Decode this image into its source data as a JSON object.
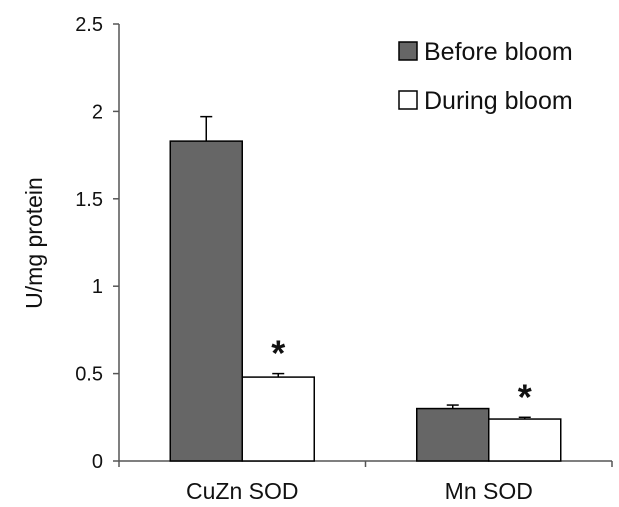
{
  "chart_data": {
    "type": "bar",
    "ylabel": "U/mg protein",
    "xlabel": "",
    "ylim": [
      0,
      2.5
    ],
    "yticks": [
      {
        "value": 0,
        "label": "0"
      },
      {
        "value": 0.5,
        "label": "0.5"
      },
      {
        "value": 1,
        "label": "1"
      },
      {
        "value": 1.5,
        "label": "1.5"
      },
      {
        "value": 2,
        "label": "2"
      },
      {
        "value": 2.5,
        "label": "2.5"
      }
    ],
    "categories": [
      "CuZn SOD",
      "Mn SOD"
    ],
    "series": [
      {
        "name": "Before bloom",
        "color": "#666666",
        "values": [
          1.83,
          0.3
        ],
        "errors": [
          0.14,
          0.02
        ]
      },
      {
        "name": "During bloom",
        "color": "#ffffff",
        "values": [
          0.48,
          0.24
        ],
        "errors": [
          0.02,
          0.01
        ]
      }
    ],
    "annotations": [
      {
        "text": "*",
        "category": 0,
        "series": 1
      },
      {
        "text": "*",
        "category": 1,
        "series": 1
      }
    ],
    "legend_position": "top-right",
    "grid": false
  }
}
